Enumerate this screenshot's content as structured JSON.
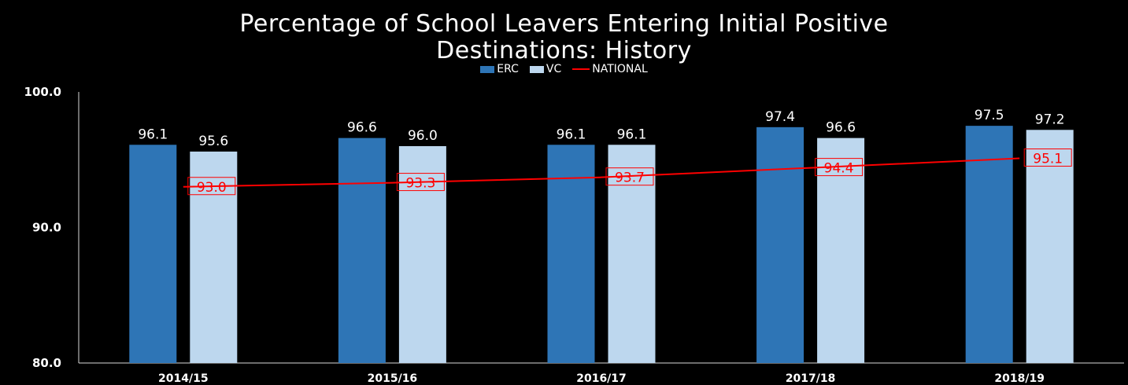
{
  "chart_data": {
    "type": "bar",
    "title_lines": [
      "Percentage of School Leavers Entering Initial Positive",
      "Destinations: History"
    ],
    "categories": [
      "2014/15",
      "2015/16",
      "2016/17",
      "2017/18",
      "2018/19"
    ],
    "series": [
      {
        "name": "ERC",
        "type": "bar",
        "color": "#2e75b6",
        "values": [
          96.1,
          96.6,
          96.1,
          97.4,
          97.5
        ],
        "labels": [
          "96.1",
          "96.6",
          "96.1",
          "97.4",
          "97.5"
        ]
      },
      {
        "name": "VC",
        "type": "bar",
        "color": "#bdd7ee",
        "values": [
          95.6,
          96.0,
          96.1,
          96.6,
          97.2
        ],
        "labels": [
          "95.6",
          "96.0",
          "96.1",
          "96.6",
          "97.2"
        ]
      },
      {
        "name": "NATIONAL",
        "type": "line",
        "color": "#ff0000",
        "values": [
          93.0,
          93.3,
          93.7,
          94.4,
          95.1
        ],
        "labels": [
          "93.0",
          "93.3",
          "93.7",
          "94.4",
          "95.1"
        ]
      }
    ],
    "ylim": [
      80,
      100
    ],
    "yticks": [
      "80.0",
      "90.0",
      "100.0"
    ],
    "legend": "top",
    "grid": false
  }
}
